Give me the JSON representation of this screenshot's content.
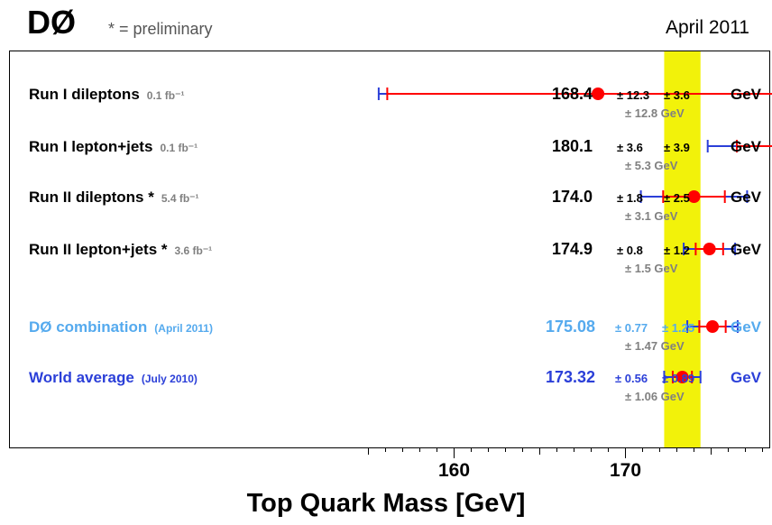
{
  "header": {
    "logo": "DØ",
    "note": "* = preliminary",
    "date": "April 2011"
  },
  "colors": {
    "band": "#f2f20a",
    "point": "#ff0000",
    "stat_bar": "#ff0000",
    "total_bar": "#2b3fd8",
    "combo_text": "#55aaee",
    "world_text": "#2b3fd8",
    "sub_text": "#808080"
  },
  "chart_data": {
    "type": "scatter",
    "xlabel": "Top Quark Mass  [GeV]",
    "xlim": [
      148.5,
      197.5
    ],
    "xticks": [
      160,
      170,
      180
    ],
    "band": {
      "center": 173.32,
      "halfwidth": 1.06
    },
    "grid": false,
    "series": [
      {
        "label": "Run I  dileptons",
        "lumi": "0.1 fb⁻¹",
        "value": 168.4,
        "value_text": "168.4",
        "stat": 12.3,
        "syst": 3.6,
        "total": 12.8,
        "stat_text": "± 12.3",
        "syst_text": "± 3.6",
        "total_text": "± 12.8 GeV",
        "unit": "GeV",
        "style": "run"
      },
      {
        "label": "Run I  lepton+jets",
        "lumi": "0.1 fb⁻¹",
        "value": 180.1,
        "value_text": "180.1",
        "stat": 3.6,
        "syst": 3.9,
        "total": 5.3,
        "stat_text": "± 3.6",
        "syst_text": "± 3.9",
        "total_text": "± 5.3 GeV",
        "unit": "GeV",
        "style": "run"
      },
      {
        "label": "Run II  dileptons *",
        "lumi": "5.4 fb⁻¹",
        "value": 174.0,
        "value_text": "174.0",
        "stat": 1.8,
        "syst": 2.5,
        "total": 3.1,
        "stat_text": "± 1.8",
        "syst_text": "± 2.5",
        "total_text": "± 3.1 GeV",
        "unit": "GeV",
        "style": "run"
      },
      {
        "label": "Run II  lepton+jets *",
        "lumi": "3.6 fb⁻¹",
        "value": 174.9,
        "value_text": "174.9",
        "stat": 0.8,
        "syst": 1.2,
        "total": 1.5,
        "stat_text": "± 0.8",
        "syst_text": "± 1.2",
        "total_text": "± 1.5 GeV",
        "unit": "GeV",
        "style": "run"
      },
      {
        "label": "DØ combination",
        "lumi": "(April 2011)",
        "value": 175.08,
        "value_text": "175.08",
        "stat": 0.77,
        "syst": 1.25,
        "total": 1.47,
        "stat_text": "± 0.77",
        "syst_text": "± 1.25",
        "total_text": "± 1.47 GeV",
        "unit": "GeV",
        "style": "combo"
      },
      {
        "label": "World average",
        "lumi": "(July 2010)",
        "value": 173.32,
        "value_text": "173.32",
        "stat": 0.56,
        "syst": 0.89,
        "total": 1.06,
        "stat_text": "± 0.56",
        "syst_text": "± 0.89",
        "total_text": "± 1.06 GeV",
        "unit": "GeV",
        "style": "world"
      }
    ]
  }
}
